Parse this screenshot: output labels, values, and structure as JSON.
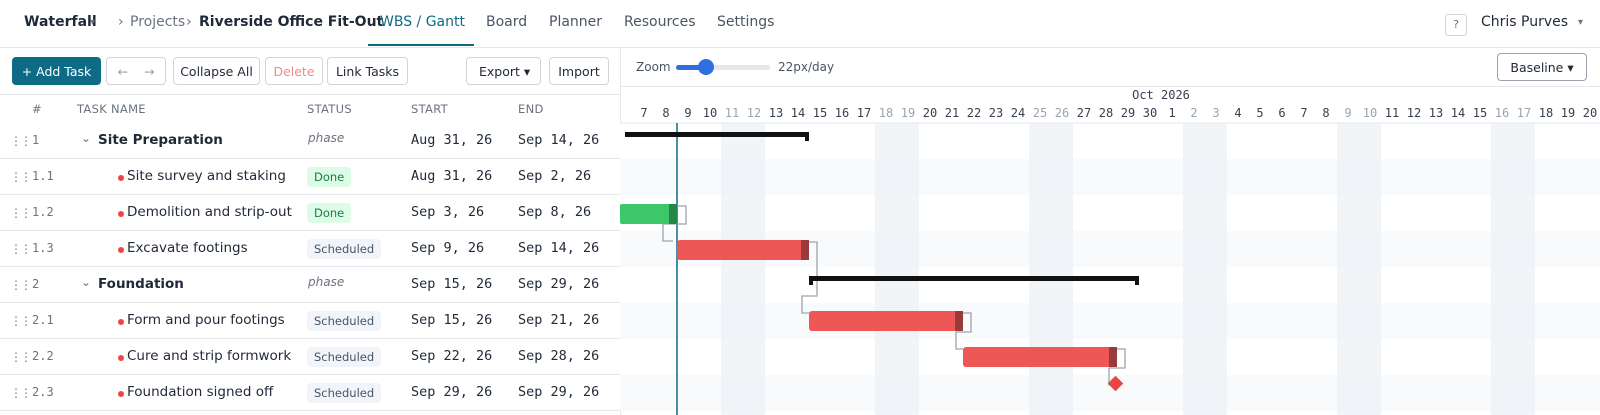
{
  "nav": {
    "brand": "Waterfall",
    "breadcrumb": [
      "Projects",
      "Riverside Office Fit-Out"
    ],
    "tabs": [
      "WBS / Gantt",
      "Board",
      "Planner",
      "Resources",
      "Settings"
    ],
    "help": "?",
    "user": "Chris Purves"
  },
  "toolbar": {
    "add": "+ Add Task",
    "buttons": [
      "Collapse All",
      "Delete",
      "Link Tasks"
    ],
    "export": "Export",
    "import": "Import"
  },
  "zoom": {
    "label": "Zoom",
    "value": "22px/day"
  },
  "baseline": "Baseline",
  "table": {
    "columns": [
      "#",
      "TASK NAME",
      "STATUS",
      "START",
      "END"
    ],
    "rows": [
      {
        "id": "1",
        "name": "Site Preparation",
        "status": "phase",
        "start": "Aug 31, 26",
        "end": "Sep 14, 26"
      },
      {
        "id": "1.1",
        "name": "Site survey and staking",
        "status": "Done",
        "start": "Aug 31, 26",
        "end": "Sep 2, 26"
      },
      {
        "id": "1.2",
        "name": "Demolition and strip-out",
        "status": "Done",
        "start": "Sep 3, 26",
        "end": "Sep 8, 26"
      },
      {
        "id": "1.3",
        "name": "Excavate footings",
        "status": "Scheduled",
        "start": "Sep 9, 26",
        "end": "Sep 14, 26"
      },
      {
        "id": "2",
        "name": "Foundation",
        "status": "phase",
        "start": "Sep 15, 26",
        "end": "Sep 29, 26"
      },
      {
        "id": "2.1",
        "name": "Form and pour footings",
        "status": "Scheduled",
        "start": "Sep 15, 26",
        "end": "Sep 21, 26"
      },
      {
        "id": "2.2",
        "name": "Cure and strip formwork",
        "status": "Scheduled",
        "start": "Sep 22, 26",
        "end": "Sep 28, 26"
      },
      {
        "id": "2.3",
        "name": "Foundation signed off",
        "status": "Scheduled",
        "start": "Sep 29, 26",
        "end": "Sep 29, 26"
      }
    ]
  },
  "timeline": {
    "month": "Oct 2026",
    "days": [
      "7",
      "8",
      "9",
      "10",
      "11",
      "12",
      "13",
      "14",
      "15",
      "16",
      "17",
      "18",
      "19",
      "20",
      "21",
      "22",
      "23",
      "24",
      "25",
      "26",
      "27",
      "28",
      "29",
      "30",
      "1",
      "2",
      "3",
      "4",
      "5",
      "6",
      "7",
      "8",
      "9",
      "10",
      "11",
      "12",
      "13",
      "14",
      "15",
      "16",
      "17",
      "18",
      "19",
      "20"
    ]
  }
}
